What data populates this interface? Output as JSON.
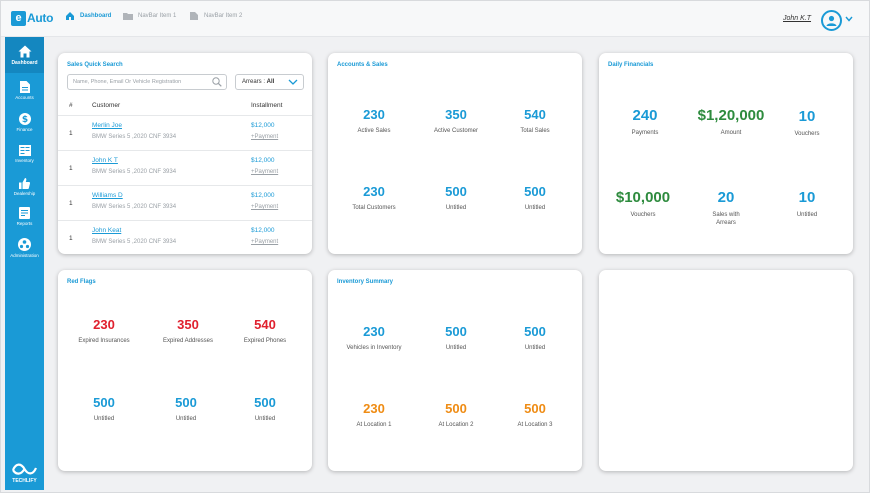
{
  "app": {
    "logo_letter": "e",
    "logo_text": "Auto",
    "brand_name": "TECHLIFY"
  },
  "navbar": {
    "items": [
      {
        "label": "Dashboard",
        "icon": "home-icon",
        "active": true
      },
      {
        "label": "NavBar Item 1",
        "icon": "folder-icon",
        "active": false
      },
      {
        "label": "NavBar Item 2",
        "icon": "document-icon",
        "active": false
      }
    ],
    "user_name": "John K.T"
  },
  "sidebar": {
    "items": [
      {
        "label": "Dashboard",
        "icon": "home-icon"
      },
      {
        "label": "Accounts",
        "icon": "file-icon"
      },
      {
        "label": "Finance",
        "icon": "dollar-icon"
      },
      {
        "label": "Inventory",
        "icon": "inventory-icon"
      },
      {
        "label": "Dealership",
        "icon": "thumbs-up-icon"
      },
      {
        "label": "Reports",
        "icon": "report-icon"
      },
      {
        "label": "Administration",
        "icon": "admin-icon"
      }
    ]
  },
  "sales_search": {
    "title": "Sales Quick Search",
    "placeholder": "Name, Phone, Email Or Vehicle Registration",
    "filter_label": "Arrears : ",
    "filter_value": "All",
    "headers": [
      "#",
      "Customer",
      "Installment"
    ],
    "rows": [
      {
        "idx": "1",
        "name": "Merlin Joe",
        "vehicle": "BMW Series 5 ,2020   CNF 3934",
        "amount": "$12,000",
        "action": "+Payment"
      },
      {
        "idx": "1",
        "name": "John K T",
        "vehicle": "BMW Series 5 ,2020   CNF 3934",
        "amount": "$12,000",
        "action": "+Payment"
      },
      {
        "idx": "1",
        "name": "Williams D",
        "vehicle": "BMW Series 5 ,2020   CNF 3934",
        "amount": "$12,000",
        "action": "+Payment"
      },
      {
        "idx": "1",
        "name": "John Keat",
        "vehicle": "BMW Series 5 ,2020   CNF 3934",
        "amount": "$12,000",
        "action": "+Payment"
      }
    ]
  },
  "accounts_sales": {
    "title": "Accounts & Sales",
    "stats": [
      {
        "value": "230",
        "label": "Active Sales"
      },
      {
        "value": "350",
        "label": "Active Customer"
      },
      {
        "value": "540",
        "label": "Total Sales"
      },
      {
        "value": "230",
        "label": "Total Customers"
      },
      {
        "value": "500",
        "label": "Untitled"
      },
      {
        "value": "500",
        "label": "Untitled"
      }
    ]
  },
  "daily_financials": {
    "title": "Daily Financials",
    "stats": [
      {
        "value": "240",
        "label": "Payments",
        "color": "#1a9ad6"
      },
      {
        "value": "$1,20,000",
        "label": "Amount",
        "color": "#2e8b3e"
      },
      {
        "value": "10",
        "label": "Vouchers",
        "color": "#1a9ad6"
      },
      {
        "value": "$10,000",
        "label": "Vouchers",
        "color": "#2e8b3e"
      },
      {
        "value": "20",
        "label": "Sales with Arrears",
        "color": "#1a9ad6"
      },
      {
        "value": "10",
        "label": "Untitled",
        "color": "#1a9ad6"
      }
    ]
  },
  "red_flags": {
    "title": "Red Flags",
    "stats": [
      {
        "value": "230",
        "label": "Expired Insurances",
        "color": "#e0202e"
      },
      {
        "value": "350",
        "label": "Expired Addresses",
        "color": "#e0202e"
      },
      {
        "value": "540",
        "label": "Expired Phones",
        "color": "#e0202e"
      },
      {
        "value": "500",
        "label": "Untitled",
        "color": "#1a9ad6"
      },
      {
        "value": "500",
        "label": "Untitled",
        "color": "#1a9ad6"
      },
      {
        "value": "500",
        "label": "Untitled",
        "color": "#1a9ad6"
      }
    ]
  },
  "inventory_summary": {
    "title": "Inventory Summary",
    "stats": [
      {
        "value": "230",
        "label": "Vehicles in Inventory",
        "color": "#1a9ad6"
      },
      {
        "value": "500",
        "label": "Untitled",
        "color": "#1a9ad6"
      },
      {
        "value": "500",
        "label": "Untitled",
        "color": "#1a9ad6"
      },
      {
        "value": "230",
        "label": "At Location 1",
        "color": "#ef8c14"
      },
      {
        "value": "500",
        "label": "At Location 2",
        "color": "#ef8c14"
      },
      {
        "value": "500",
        "label": "At Location 3",
        "color": "#ef8c14"
      }
    ]
  },
  "colors": {
    "accent": "#1a9ad6",
    "green": "#2e8b3e",
    "red": "#e0202e",
    "orange": "#ef8c14"
  }
}
